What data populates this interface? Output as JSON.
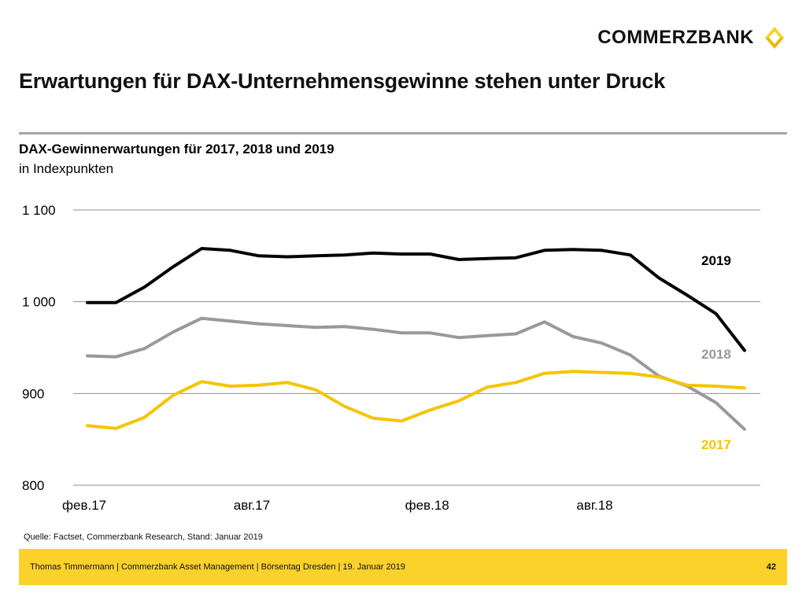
{
  "brand": {
    "name": "COMMERZBANK"
  },
  "page_title": "Erwartungen für DAX-Unternehmensgewinne stehen unter Druck",
  "chart_data": {
    "type": "line",
    "title": "DAX-Gewinnerwartungen für 2017, 2018 und 2019",
    "subtitle": "in Indexpunkten",
    "xlabel": "",
    "ylabel": "",
    "ylim": [
      800,
      1100
    ],
    "yticks": [
      800,
      900,
      1000,
      1100
    ],
    "ytick_labels": [
      "800",
      "900",
      "1 000",
      "1 100"
    ],
    "x": [
      "2017-02",
      "2017-03",
      "2017-04",
      "2017-05",
      "2017-06",
      "2017-07",
      "2017-08",
      "2017-09",
      "2017-10",
      "2017-11",
      "2017-12",
      "2018-01",
      "2018-02",
      "2018-03",
      "2018-04",
      "2018-05",
      "2018-06",
      "2018-07",
      "2018-08",
      "2018-09",
      "2018-10",
      "2018-11",
      "2018-12",
      "2019-01"
    ],
    "xtick_labels": [
      "фев.17",
      "авг.17",
      "фев.18",
      "авг.18"
    ],
    "xtick_positions": [
      "2017-02",
      "2017-08",
      "2018-02",
      "2018-08"
    ],
    "grid": true,
    "series": [
      {
        "name": "2019",
        "color": "#000000",
        "values": [
          999,
          999,
          1016,
          1038,
          1058,
          1056,
          1050,
          1049,
          1050,
          1051,
          1053,
          1052,
          1052,
          1046,
          1047,
          1048,
          1056,
          1057,
          1056,
          1051,
          1026,
          1007,
          987,
          947
        ]
      },
      {
        "name": "2018",
        "color": "#999999",
        "values": [
          941,
          940,
          949,
          967,
          982,
          979,
          976,
          974,
          972,
          973,
          970,
          966,
          966,
          961,
          963,
          965,
          978,
          962,
          955,
          942,
          919,
          908,
          890,
          861
        ]
      },
      {
        "name": "2017",
        "color": "#f5c400",
        "values": [
          865,
          862,
          874,
          898,
          913,
          908,
          909,
          912,
          904,
          886,
          873,
          870,
          882,
          892,
          907,
          912,
          922,
          924,
          923,
          922,
          918,
          909,
          908,
          906
        ]
      }
    ]
  },
  "source": "Quelle: Factset, Commerzbank Research, Stand: Januar 2019",
  "footer": {
    "text": "Thomas Timmermann | Commerzbank Asset Management | Börsentag Dresden | 19. Januar 2019",
    "page": "42"
  }
}
